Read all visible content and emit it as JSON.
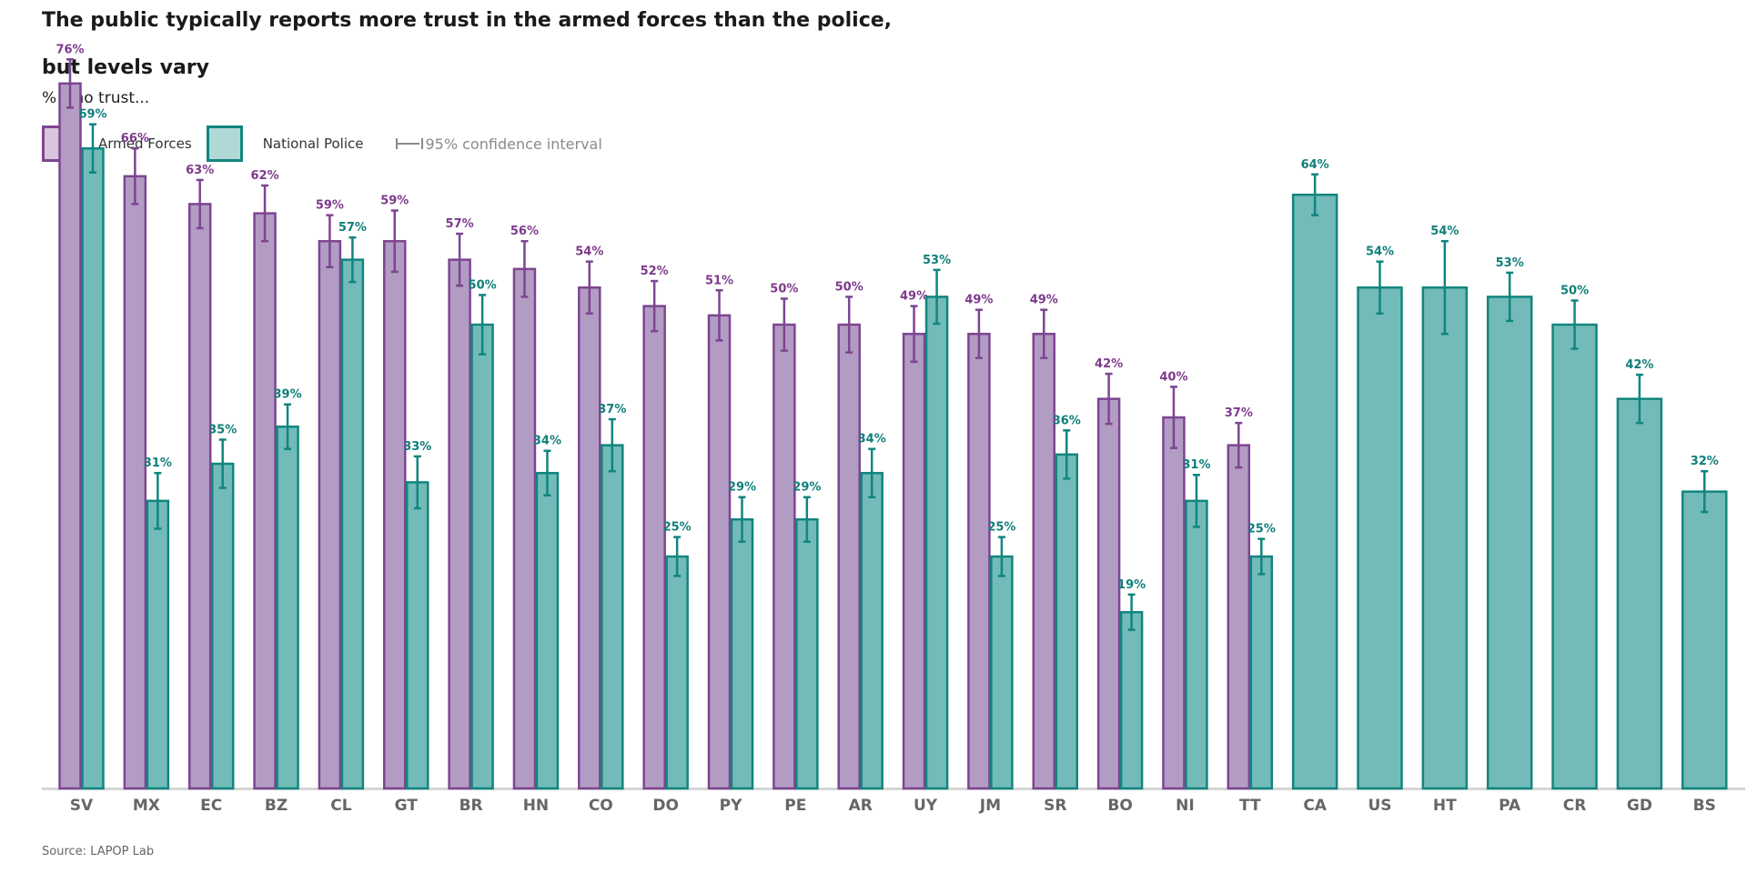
{
  "header": {
    "title_line1": "The public typically reports more trust in the armed forces than the police,",
    "title_line2": "but levels vary",
    "subtitle": "% who trust..."
  },
  "legend": {
    "armed_forces": "Armed Forces",
    "national_police": "National Police",
    "ci": "95% confidence interval"
  },
  "source": "Source: LAPOP Lab",
  "colors": {
    "armed_fill": "#b39cc3",
    "armed_stroke": "#7d4591",
    "armed_label": "#7d3a8c",
    "police_fill": "#72bbb9",
    "police_stroke": "#11857f",
    "police_label": "#0f7f7a",
    "axis": "#d6d6d6",
    "tick_text": "#666666"
  },
  "chart_data": {
    "type": "bar",
    "categories": [
      "SV",
      "MX",
      "EC",
      "BZ",
      "CL",
      "GT",
      "BR",
      "HN",
      "CO",
      "DO",
      "PY",
      "PE",
      "AR",
      "UY",
      "JM",
      "SR",
      "BO",
      "NI",
      "TT",
      "CA",
      "US",
      "HT",
      "PA",
      "CR",
      "GD",
      "BS"
    ],
    "series": [
      {
        "name": "Armed Forces",
        "values": [
          76,
          66,
          63,
          62,
          59,
          59,
          57,
          56,
          54,
          52,
          51,
          50,
          50,
          49,
          49,
          49,
          42,
          40,
          37,
          null,
          null,
          null,
          null,
          null,
          null,
          null
        ],
        "labels": [
          "76%",
          "66%",
          "63%",
          "62%",
          "59%",
          "59%",
          "57%",
          "56%",
          "54%",
          "52%",
          "51%",
          "50%",
          "50%",
          "49%",
          "49%",
          "49%",
          "42%",
          "40%",
          "37%",
          null,
          null,
          null,
          null,
          null,
          null,
          null
        ],
        "ci_half": [
          2.6,
          3.0,
          2.6,
          3.0,
          2.8,
          3.3,
          2.8,
          3.0,
          2.8,
          2.7,
          2.7,
          2.8,
          3.0,
          3.0,
          2.6,
          2.6,
          2.7,
          3.3,
          2.4,
          null,
          null,
          null,
          null,
          null,
          null,
          null
        ]
      },
      {
        "name": "National Police",
        "values": [
          69,
          31,
          35,
          39,
          57,
          33,
          50,
          34,
          37,
          25,
          29,
          29,
          34,
          53,
          25,
          36,
          19,
          31,
          25,
          64,
          54,
          54,
          53,
          50,
          42,
          32
        ],
        "labels": [
          "69%",
          "31%",
          "35%",
          "39%",
          "57%",
          "33%",
          "50%",
          "34%",
          "37%",
          "25%",
          "29%",
          "29%",
          "34%",
          "53%",
          "25%",
          "36%",
          "19%",
          "31%",
          "25%",
          "64%",
          "54%",
          "54%",
          "53%",
          "50%",
          "42%",
          "32%"
        ],
        "ci_half": [
          2.6,
          3.0,
          2.6,
          2.4,
          2.4,
          2.8,
          3.2,
          2.4,
          2.8,
          2.1,
          2.4,
          2.4,
          2.6,
          2.9,
          2.1,
          2.6,
          1.9,
          2.8,
          1.9,
          2.2,
          2.8,
          5.0,
          2.6,
          2.6,
          2.6,
          2.2
        ]
      }
    ],
    "ylim": [
      0,
      80
    ],
    "grid": false,
    "legend_position": "top-left"
  }
}
